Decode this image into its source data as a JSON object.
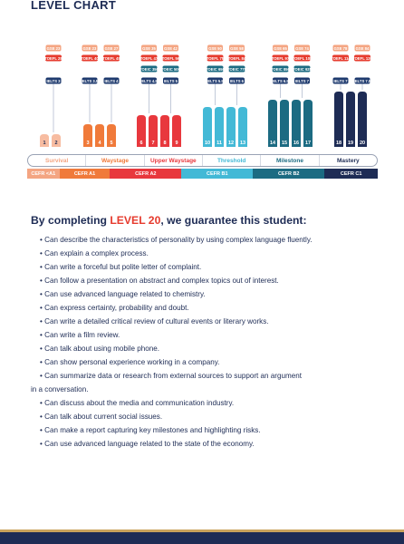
{
  "page": {
    "title": "LEVEL CHART"
  },
  "colors": {
    "survival": "#f4a582",
    "waystage": "#f07a3a",
    "upper_waystage": "#e8383d",
    "threshold": "#43b9d6",
    "milestone": "#1c6b82",
    "mastery": "#1e2c55",
    "gse_badge": "#f4a582",
    "toefl_badge": "#e63b2e",
    "toeic_badge": "#1c6b82",
    "ielts_badge": "#1e3a6e",
    "connector": "#9aa7c0"
  },
  "chart_data": {
    "type": "bar",
    "groups": [
      {
        "stage": "Survival",
        "cefr": "CEFR <A1",
        "color": "#f4a582",
        "levels": [
          1,
          2
        ],
        "gse": [
          "GSE 23"
        ],
        "toefl": [
          "TOEFL 28"
        ],
        "toeic": [],
        "ielts": [
          "IELTS 3"
        ]
      },
      {
        "stage": "Waystage",
        "cefr": "CEFR A1",
        "color": "#f07a3a",
        "levels": [
          3,
          4,
          5
        ],
        "gse": [
          "GSE 23",
          "GSE 27"
        ],
        "toefl": [
          "TOEFL 40",
          "TOEFL 45"
        ],
        "toeic": [],
        "ielts": [
          "IELTS 3.5",
          "IELTS 4"
        ]
      },
      {
        "stage": "Upper Waystage",
        "cefr": "CEFR A2",
        "color": "#e8383d",
        "levels": [
          6,
          7,
          8,
          9
        ],
        "gse": [
          "GSE 35",
          "GSE 42"
        ],
        "toefl": [
          "TOEFL 47",
          "TOEFL 56"
        ],
        "toeic": [
          "TOEIC 350",
          "TOEIC 500"
        ],
        "ielts": [
          "IELTS 4.5",
          "IELTS 5"
        ]
      },
      {
        "stage": "Threshold",
        "cefr": "CEFR B1",
        "color": "#43b9d6",
        "levels": [
          10,
          11,
          12,
          13
        ],
        "gse": [
          "GSE 50",
          "GSE 58"
        ],
        "toefl": [
          "TOEFL 75",
          "TOEFL 84"
        ],
        "toeic": [
          "TOEIC 650",
          "TOEIC 775"
        ],
        "ielts": [
          "IELTS 5.5",
          "IELTS 6"
        ]
      },
      {
        "stage": "Milestone",
        "cefr": "CEFR B2",
        "color": "#1c6b82",
        "levels": [
          14,
          15,
          16,
          17
        ],
        "gse": [
          "GSE 65",
          "GSE 74"
        ],
        "toefl": [
          "TOEFL 97",
          "TOEFL 108"
        ],
        "toeic": [
          "TOEIC 850",
          "TOEIC 925"
        ],
        "ielts": [
          "IELTS 6.5",
          "IELTS 7"
        ]
      },
      {
        "stage": "Mastery",
        "cefr": "CEFR C1",
        "color": "#1e2c55",
        "levels": [
          18,
          19,
          20
        ],
        "gse": [
          "GSE 78",
          "GSE 84"
        ],
        "toefl": [
          "TOEFL 114",
          "TOEFL 120"
        ],
        "toeic": [],
        "ielts": [
          "IELTS 7",
          "IELTS 7.5"
        ]
      }
    ]
  },
  "guarantee": {
    "prefix": "By completing ",
    "level": "LEVEL 20",
    "suffix": ", we guarantee this student:"
  },
  "outcomes": [
    "Can describe the characteristics of personality by using complex language fluently.",
    "Can explain a complex process.",
    "Can write a forceful but polite letter of complaint.",
    "Can follow a presentation on abstract and complex topics out of interest.",
    "Can use advanced language related to chemistry.",
    "Can express certainty, probability and doubt.",
    "Can write a detailed critical review of cultural events or literary works.",
    "Can write a film review.",
    "Can talk about using mobile phone.",
    "Can show personal experience working in a company.",
    "Can summarize data or research from external sources to support an argument",
    "in a conversation.",
    "Can discuss about the media and communication industry.",
    "Can talk about current social issues.",
    "Can make a report capturing key milestones and highlighting risks.",
    "Can use advanced language related to the state of the economy."
  ],
  "bullet": "•"
}
